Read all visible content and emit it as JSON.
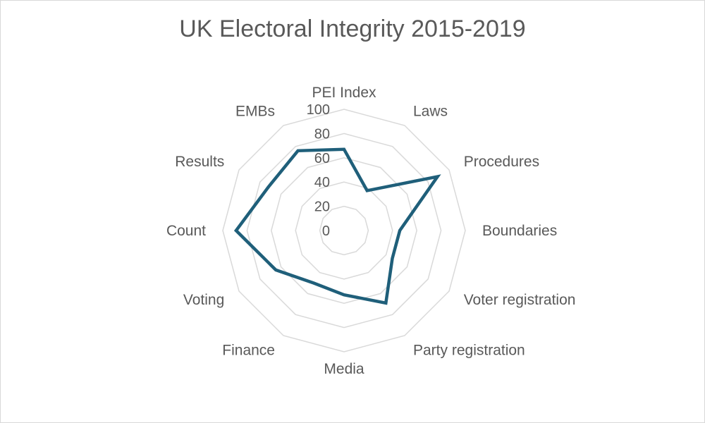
{
  "chart_data": {
    "type": "radar",
    "title": "UK Electoral Integrity 2015-2019",
    "categories": [
      "PEI Index",
      "Laws",
      "Procedures",
      "Boundaries",
      "Voter registration",
      "Party registration",
      "Media",
      "Finance",
      "Voting",
      "Count",
      "Results",
      "EMBs"
    ],
    "series": [
      {
        "values": [
          67,
          38,
          89,
          46,
          46,
          69,
          53,
          50,
          65,
          89,
          72,
          76
        ]
      }
    ],
    "rlim": [
      0,
      100
    ],
    "ticks": [
      0,
      20,
      40,
      60,
      80,
      100
    ],
    "grid": true,
    "legend": "none",
    "colors": {
      "series": "#1f5f7a",
      "grid": "#d9d9d9",
      "text": "#595959"
    }
  }
}
